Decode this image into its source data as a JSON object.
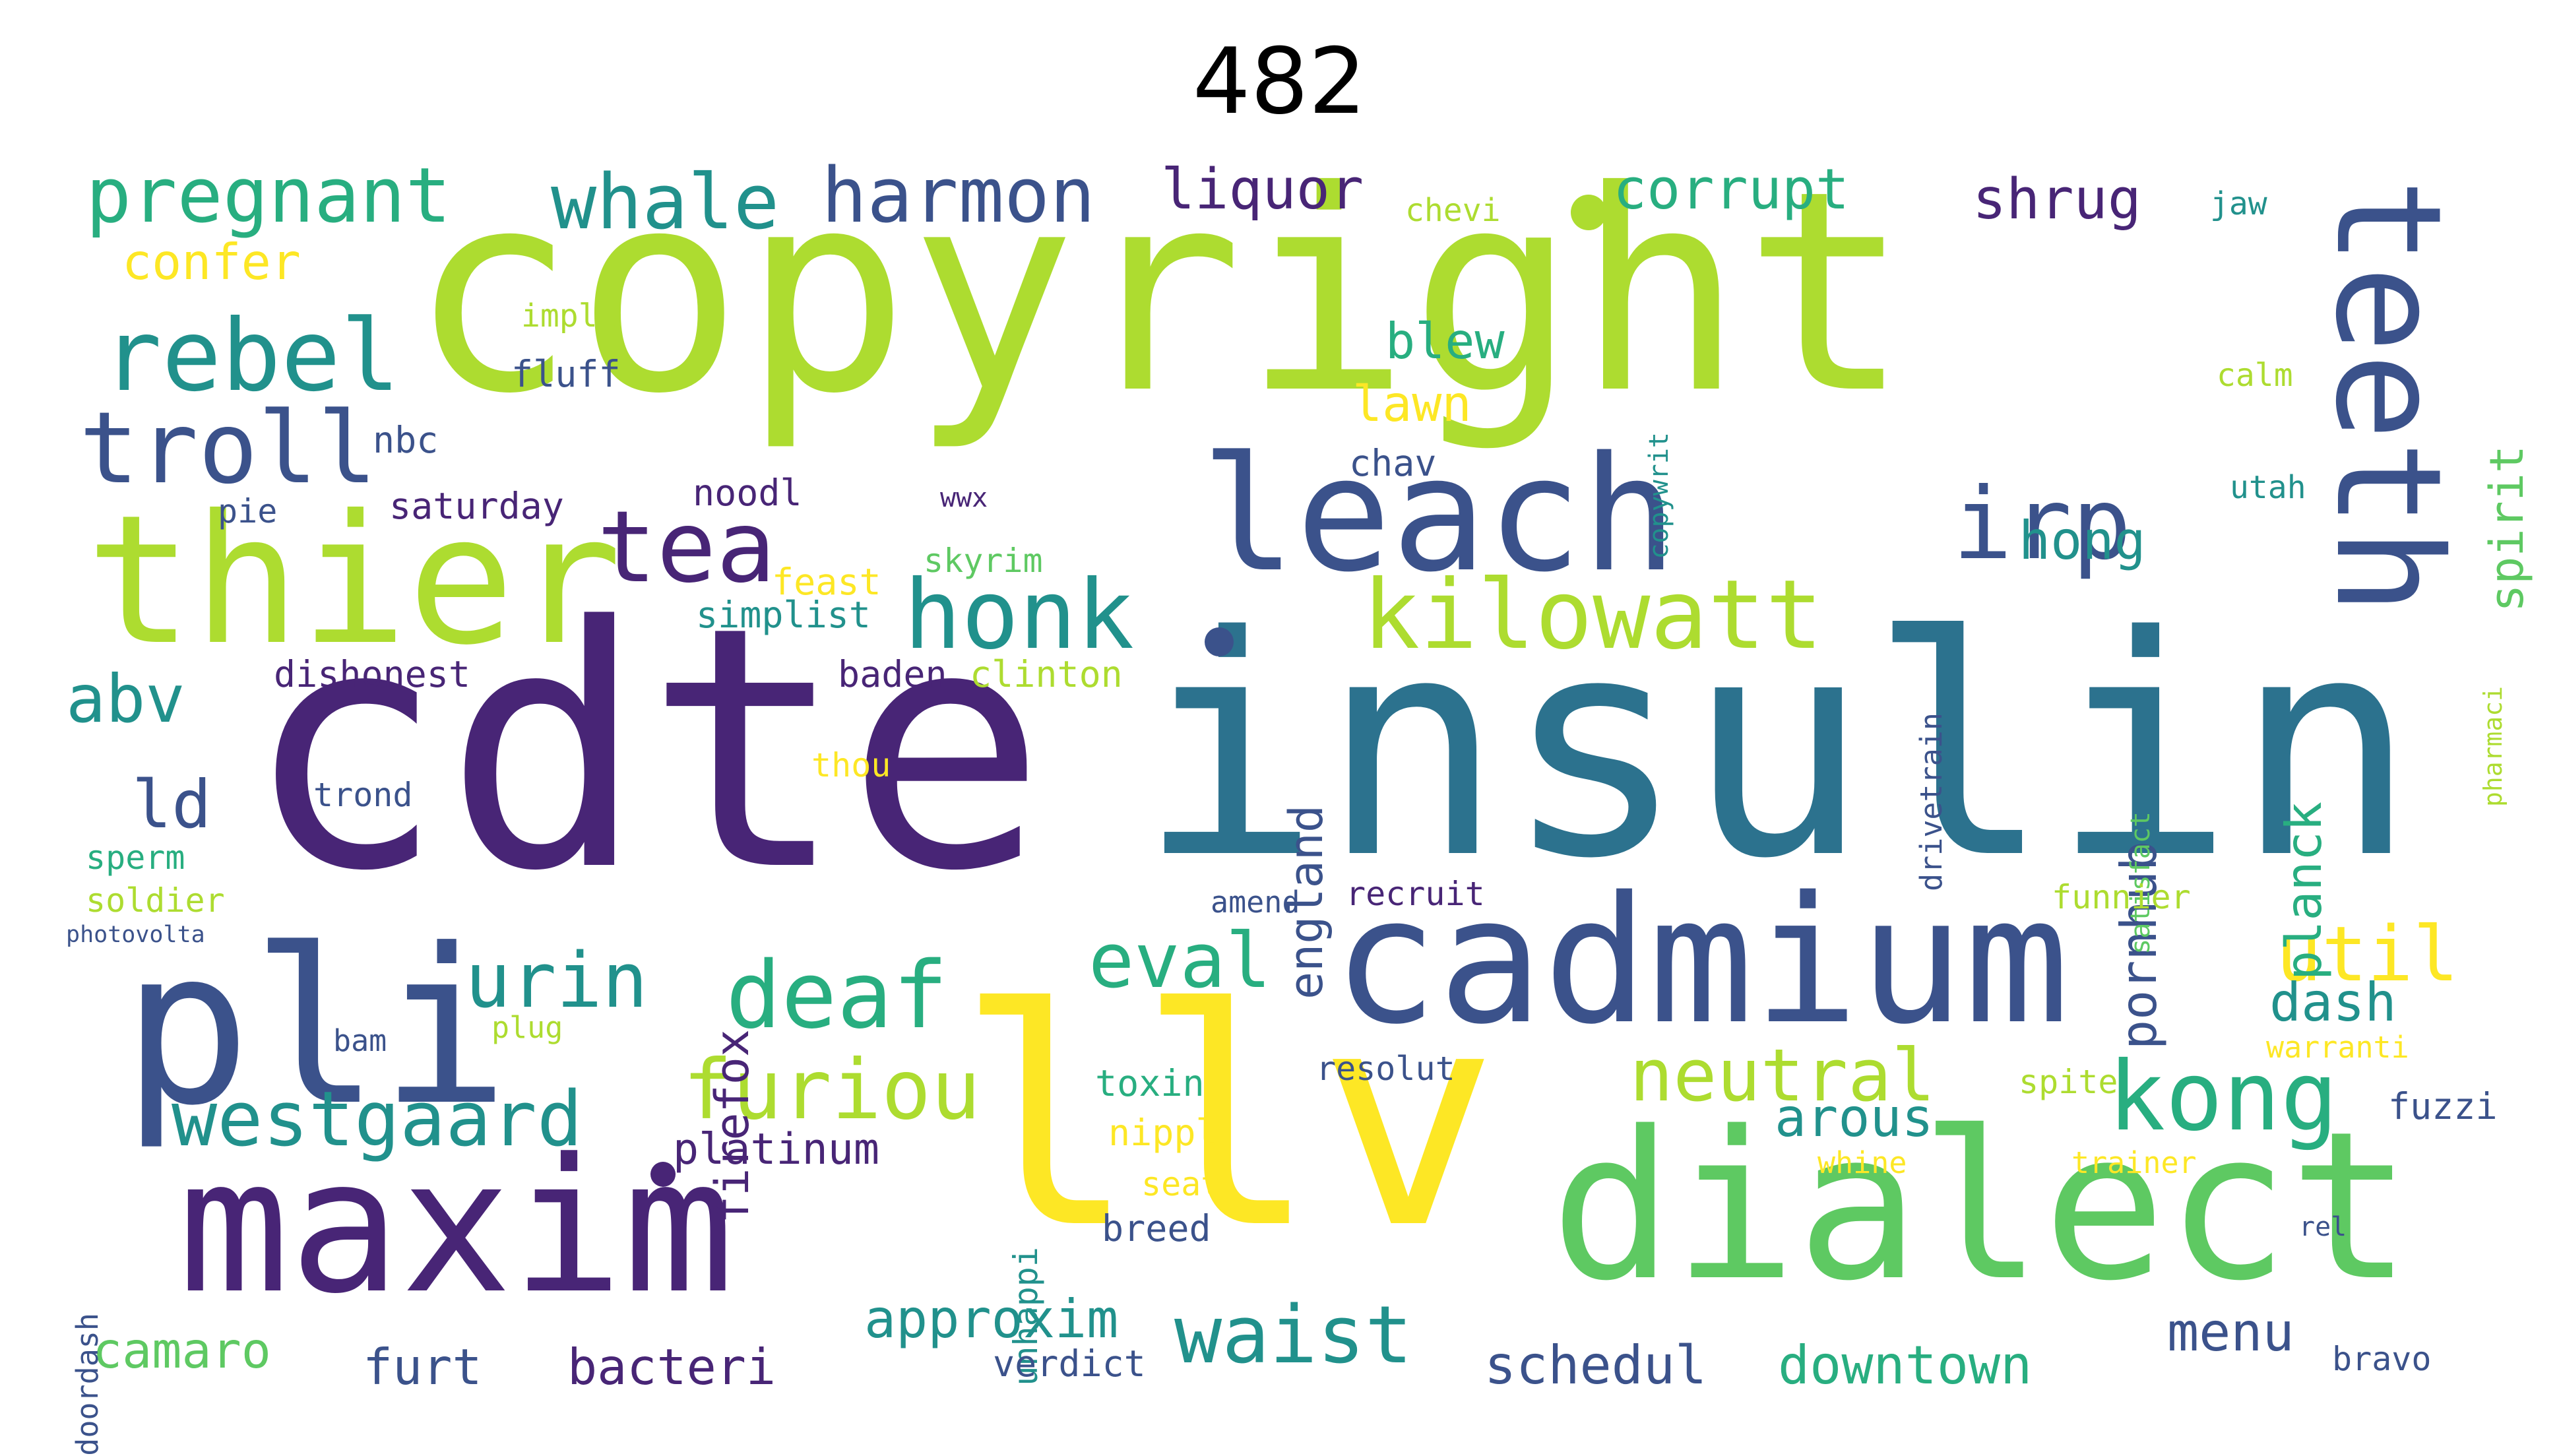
{
  "title": "482",
  "colors": {
    "purple": "#482576",
    "indigo": "#3b528b",
    "blue": "#2c728e",
    "teal": "#21918c",
    "green": "#28ae80",
    "lightgreen": "#5ec962",
    "lime": "#addc30",
    "yellow": "#fde725"
  },
  "words": [
    {
      "text": "copyright",
      "color": "lime"
    },
    {
      "text": "cdte",
      "color": "purple"
    },
    {
      "text": "insulin",
      "color": "blue"
    },
    {
      "text": "llv",
      "color": "yellow"
    },
    {
      "text": "dialect",
      "color": "lightgreen"
    },
    {
      "text": "thier",
      "color": "lime"
    },
    {
      "text": "pli",
      "color": "indigo"
    },
    {
      "text": "maxim",
      "color": "purple"
    },
    {
      "text": "cadmium",
      "color": "indigo"
    },
    {
      "text": "leach",
      "color": "indigo"
    },
    {
      "text": "teeth",
      "color": "indigo"
    },
    {
      "text": "kilowatt",
      "color": "lime"
    },
    {
      "text": "honk",
      "color": "teal"
    },
    {
      "text": "irp",
      "color": "indigo"
    },
    {
      "text": "tea",
      "color": "purple"
    },
    {
      "text": "troll",
      "color": "indigo"
    },
    {
      "text": "rebel",
      "color": "teal"
    },
    {
      "text": "pregnant",
      "color": "green"
    },
    {
      "text": "whale",
      "color": "teal"
    },
    {
      "text": "harmon",
      "color": "indigo"
    },
    {
      "text": "deaf",
      "color": "green"
    },
    {
      "text": "westgaard",
      "color": "teal"
    },
    {
      "text": "furiou",
      "color": "lime"
    },
    {
      "text": "eval",
      "color": "green"
    },
    {
      "text": "kong",
      "color": "green"
    },
    {
      "text": "neutral",
      "color": "lime"
    },
    {
      "text": "urin",
      "color": "teal"
    },
    {
      "text": "util",
      "color": "yellow"
    },
    {
      "text": "waist",
      "color": "teal"
    },
    {
      "text": "abv",
      "color": "teal"
    },
    {
      "text": "ld",
      "color": "indigo"
    },
    {
      "text": "liquor",
      "color": "purple"
    },
    {
      "text": "corrupt",
      "color": "green"
    },
    {
      "text": "shrug",
      "color": "purple"
    },
    {
      "text": "confer",
      "color": "yellow"
    },
    {
      "text": "blew",
      "color": "green"
    },
    {
      "text": "lawn",
      "color": "yellow"
    },
    {
      "text": "hong",
      "color": "teal"
    },
    {
      "text": "arous",
      "color": "teal"
    },
    {
      "text": "dash",
      "color": "teal"
    },
    {
      "text": "firefox",
      "color": "purple"
    },
    {
      "text": "england",
      "color": "indigo"
    },
    {
      "text": "pornhub",
      "color": "indigo"
    },
    {
      "text": "planck",
      "color": "green"
    },
    {
      "text": "spirit",
      "color": "lightgreen"
    },
    {
      "text": "approxim",
      "color": "teal"
    },
    {
      "text": "schedul",
      "color": "indigo"
    },
    {
      "text": "downtown",
      "color": "green"
    },
    {
      "text": "menu",
      "color": "indigo"
    },
    {
      "text": "bacteri",
      "color": "purple"
    },
    {
      "text": "furt",
      "color": "indigo"
    },
    {
      "text": "camaro",
      "color": "lightgreen"
    },
    {
      "text": "platinum",
      "color": "purple"
    },
    {
      "text": "unhappi",
      "color": "teal"
    },
    {
      "text": "doordash",
      "color": "indigo"
    },
    {
      "text": "drivetrain",
      "color": "indigo"
    },
    {
      "text": "satisfact",
      "color": "lightgreen"
    },
    {
      "text": "pharmaci",
      "color": "lime"
    },
    {
      "text": "copywrit",
      "color": "teal"
    },
    {
      "text": "chevi",
      "color": "lime"
    },
    {
      "text": "jaw",
      "color": "teal"
    },
    {
      "text": "calm",
      "color": "lime"
    },
    {
      "text": "utah",
      "color": "teal"
    },
    {
      "text": "impli",
      "color": "lime"
    },
    {
      "text": "fluff",
      "color": "indigo"
    },
    {
      "text": "nbc",
      "color": "indigo"
    },
    {
      "text": "saturday",
      "color": "purple"
    },
    {
      "text": "pie",
      "color": "indigo"
    },
    {
      "text": "noodl",
      "color": "purple"
    },
    {
      "text": "wwx",
      "color": "purple"
    },
    {
      "text": "chav",
      "color": "indigo"
    },
    {
      "text": "skyrim",
      "color": "lightgreen"
    },
    {
      "text": "feast",
      "color": "yellow"
    },
    {
      "text": "simplist",
      "color": "teal"
    },
    {
      "text": "dishonest",
      "color": "purple"
    },
    {
      "text": "baden",
      "color": "purple"
    },
    {
      "text": "clinton",
      "color": "lime"
    },
    {
      "text": "thou",
      "color": "yellow"
    },
    {
      "text": "trond",
      "color": "indigo"
    },
    {
      "text": "sperm",
      "color": "green"
    },
    {
      "text": "soldier",
      "color": "lime"
    },
    {
      "text": "photovolta",
      "color": "indigo"
    },
    {
      "text": "amend",
      "color": "indigo"
    },
    {
      "text": "recruit",
      "color": "purple"
    },
    {
      "text": "funnier",
      "color": "lime"
    },
    {
      "text": "bam",
      "color": "indigo"
    },
    {
      "text": "plug",
      "color": "lime"
    },
    {
      "text": "resolut",
      "color": "indigo"
    },
    {
      "text": "toxin",
      "color": "green"
    },
    {
      "text": "nippl",
      "color": "yellow"
    },
    {
      "text": "seat",
      "color": "yellow"
    },
    {
      "text": "breed",
      "color": "indigo"
    },
    {
      "text": "spite",
      "color": "lime"
    },
    {
      "text": "warranti",
      "color": "yellow"
    },
    {
      "text": "whine",
      "color": "yellow"
    },
    {
      "text": "trainer",
      "color": "yellow"
    },
    {
      "text": "fuzzi",
      "color": "indigo"
    },
    {
      "text": "rel",
      "color": "indigo"
    },
    {
      "text": "verdict",
      "color": "indigo"
    },
    {
      "text": "bravo",
      "color": "indigo"
    }
  ]
}
